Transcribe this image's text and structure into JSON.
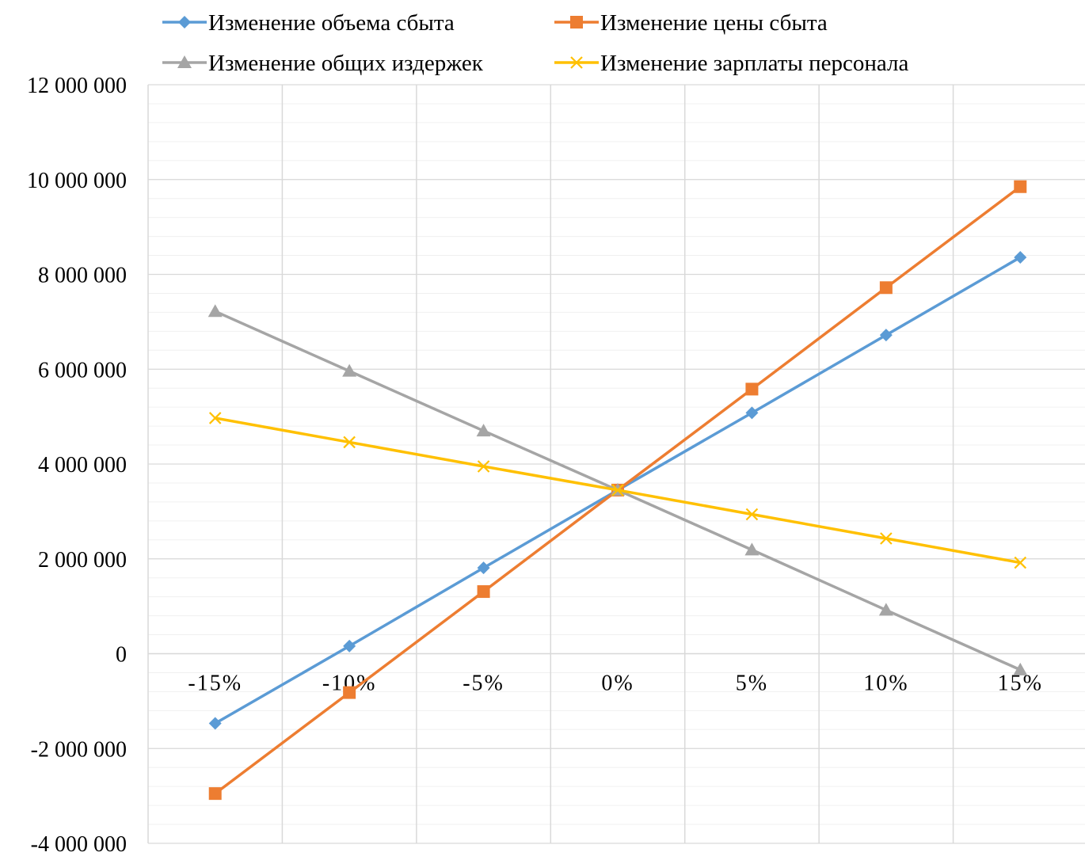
{
  "chart_data": {
    "type": "line",
    "title": "",
    "xlabel": "",
    "ylabel": "",
    "categories": [
      "-15%",
      "-10%",
      "-5%",
      "0%",
      "5%",
      "10%",
      "15%"
    ],
    "ylim": [
      -4000000,
      12000000
    ],
    "y_major_step": 2000000,
    "y_minor_step": 400000,
    "y_tick_labels": [
      "-4 000 000",
      "-2 000 000",
      "0",
      "2 000 000",
      "4 000 000",
      "6 000 000",
      "8 000 000",
      "10 000 000",
      "12 000 000"
    ],
    "grid": true,
    "legend_position": "top",
    "series": [
      {
        "name": "Изменение объема сбыта",
        "color": "#5B9BD5",
        "marker": "diamond",
        "values": [
          -1470000,
          160000,
          1810000,
          3450000,
          5080000,
          6720000,
          8360000
        ]
      },
      {
        "name": "Изменение цены сбыта",
        "color": "#ED7D31",
        "marker": "square",
        "values": [
          -2950000,
          -820000,
          1310000,
          3450000,
          5580000,
          7720000,
          9850000
        ]
      },
      {
        "name": "Изменение общих издержек",
        "color": "#A5A5A5",
        "marker": "triangle",
        "values": [
          7220000,
          5960000,
          4700000,
          3450000,
          2190000,
          920000,
          -340000
        ]
      },
      {
        "name": "Изменение зарплаты персонала",
        "color": "#FFC000",
        "marker": "x",
        "values": [
          4970000,
          4460000,
          3950000,
          3450000,
          2940000,
          2430000,
          1920000
        ]
      }
    ]
  }
}
